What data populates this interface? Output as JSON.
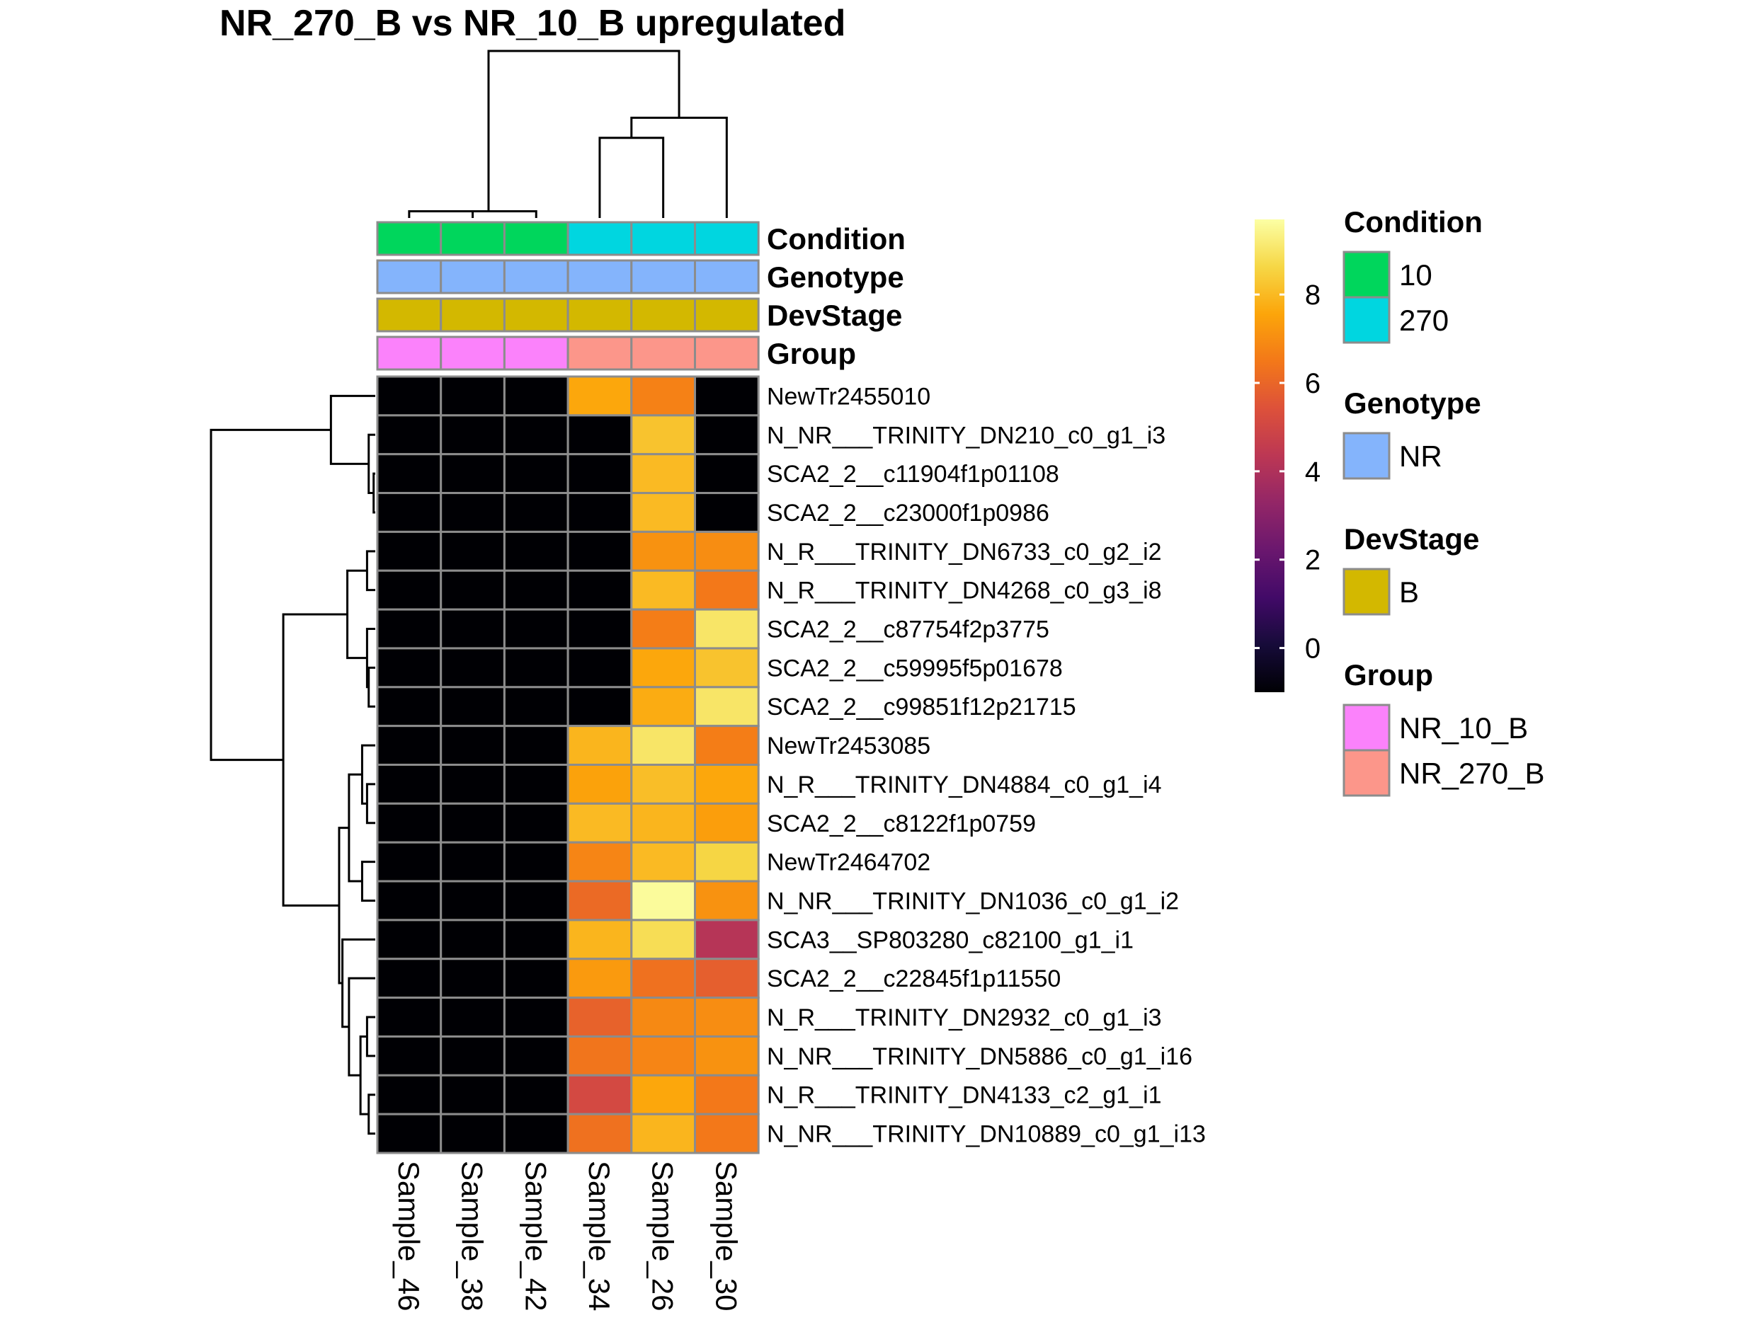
{
  "chart_data": {
    "type": "heatmap",
    "title": "NR_270_B vs NR_10_B upregulated",
    "columns": [
      "Sample_46",
      "Sample_38",
      "Sample_42",
      "Sample_34",
      "Sample_26",
      "Sample_30"
    ],
    "rows": [
      "NewTr2455010",
      "N_NR___TRINITY_DN210_c0_g1_i3",
      "SCA2_2__c11904f1p01108",
      "SCA2_2__c23000f1p0986",
      "N_R___TRINITY_DN6733_c0_g2_i2",
      "N_R___TRINITY_DN4268_c0_g3_i8",
      "SCA2_2__c87754f2p3775",
      "SCA2_2__c59995f5p01678",
      "SCA2_2__c99851f12p21715",
      "NewTr2453085",
      "N_R___TRINITY_DN4884_c0_g1_i4",
      "SCA2_2__c8122f1p0759",
      "NewTr2464702",
      "N_NR___TRINITY_DN1036_c0_g1_i2",
      "SCA3__SP803280_c82100_g1_i1",
      "SCA2_2__c22845f1p11550",
      "N_R___TRINITY_DN2932_c0_g1_i3",
      "N_NR___TRINITY_DN5886_c0_g1_i16",
      "N_R___TRINITY_DN4133_c2_g1_i1",
      "N_NR___TRINITY_DN10889_c0_g1_i13"
    ],
    "values": [
      [
        -1,
        -1,
        -1,
        7.6,
        6.7,
        -1
      ],
      [
        -1,
        -1,
        -1,
        -1,
        8.2,
        -1
      ],
      [
        -1,
        -1,
        -1,
        -1,
        8.0,
        -1
      ],
      [
        -1,
        -1,
        -1,
        -1,
        8.0,
        -1
      ],
      [
        -1,
        -1,
        -1,
        -1,
        7.1,
        7.0
      ],
      [
        -1,
        -1,
        -1,
        -1,
        8.0,
        6.5
      ],
      [
        -1,
        -1,
        -1,
        -1,
        6.6,
        9.0
      ],
      [
        -1,
        -1,
        -1,
        -1,
        7.6,
        8.2
      ],
      [
        -1,
        -1,
        -1,
        -1,
        7.7,
        9.0
      ],
      [
        -1,
        -1,
        -1,
        7.9,
        9.0,
        6.6
      ],
      [
        -1,
        -1,
        -1,
        7.5,
        8.1,
        7.6
      ],
      [
        -1,
        -1,
        -1,
        8.0,
        7.9,
        7.4
      ],
      [
        -1,
        -1,
        -1,
        6.8,
        8.0,
        8.6
      ],
      [
        -1,
        -1,
        -1,
        6.1,
        9.6,
        7.1
      ],
      [
        -1,
        -1,
        -1,
        7.9,
        8.8,
        4.2
      ],
      [
        -1,
        -1,
        -1,
        7.3,
        6.3,
        5.8
      ],
      [
        -1,
        -1,
        -1,
        5.9,
        6.9,
        7.0
      ],
      [
        -1,
        -1,
        -1,
        6.4,
        6.8,
        7.1
      ],
      [
        -1,
        -1,
        -1,
        5.1,
        7.6,
        6.5
      ],
      [
        -1,
        -1,
        -1,
        6.3,
        7.9,
        6.5
      ]
    ],
    "scale": {
      "min": -1,
      "max": 9.7,
      "ticks": [
        0,
        2,
        4,
        6,
        8
      ],
      "tick_labels": [
        "0",
        "2",
        "4",
        "6",
        "8"
      ],
      "palette": [
        "#000004",
        "#160b39",
        "#420a68",
        "#6a176e",
        "#932667",
        "#bc3754",
        "#dd513a",
        "#f37819",
        "#fca50a",
        "#f6d746",
        "#fcffa4"
      ]
    },
    "annotations": [
      {
        "name": "Condition",
        "values": [
          "10",
          "10",
          "10",
          "270",
          "270",
          "270"
        ]
      },
      {
        "name": "Genotype",
        "values": [
          "NR",
          "NR",
          "NR",
          "NR",
          "NR",
          "NR"
        ]
      },
      {
        "name": "DevStage",
        "values": [
          "B",
          "B",
          "B",
          "B",
          "B",
          "B"
        ]
      },
      {
        "name": "Group",
        "values": [
          "NR_10_B",
          "NR_10_B",
          "NR_10_B",
          "NR_270_B",
          "NR_270_B",
          "NR_270_B"
        ]
      }
    ],
    "legends": [
      {
        "title": "Condition",
        "items": [
          {
            "label": "10",
            "color": "#00d65c"
          },
          {
            "label": "270",
            "color": "#00d6e0"
          }
        ]
      },
      {
        "title": "Genotype",
        "items": [
          {
            "label": "NR",
            "color": "#84b4fc"
          }
        ]
      },
      {
        "title": "DevStage",
        "items": [
          {
            "label": "B",
            "color": "#d3b800"
          }
        ]
      },
      {
        "title": "Group",
        "items": [
          {
            "label": "NR_10_B",
            "color": "#fb82fb"
          },
          {
            "label": "NR_270_B",
            "color": "#fc968a"
          }
        ]
      }
    ],
    "col_dendrogram": [
      [
        0,
        1,
        0.04
      ],
      [
        6,
        2,
        0.04
      ],
      [
        3,
        4,
        0.48
      ],
      [
        5,
        8,
        0.6
      ],
      [
        7,
        9,
        1.0
      ]
    ],
    "row_dendrogram": [
      [
        2,
        3,
        0.01
      ],
      [
        1,
        20,
        0.04
      ],
      [
        0,
        21,
        0.27
      ],
      [
        4,
        5,
        0.05
      ],
      [
        7,
        8,
        0.04
      ],
      [
        6,
        24,
        0.05
      ],
      [
        23,
        25,
        0.17
      ],
      [
        10,
        11,
        0.05
      ],
      [
        9,
        27,
        0.08
      ],
      [
        12,
        13,
        0.08
      ],
      [
        28,
        29,
        0.16
      ],
      [
        16,
        17,
        0.05
      ],
      [
        18,
        19,
        0.04
      ],
      [
        31,
        32,
        0.09
      ],
      [
        15,
        33,
        0.16
      ],
      [
        14,
        34,
        0.2
      ],
      [
        30,
        35,
        0.22
      ],
      [
        26,
        36,
        0.56
      ],
      [
        22,
        37,
        1.0
      ]
    ],
    "legend_position": "right",
    "grid": false
  }
}
